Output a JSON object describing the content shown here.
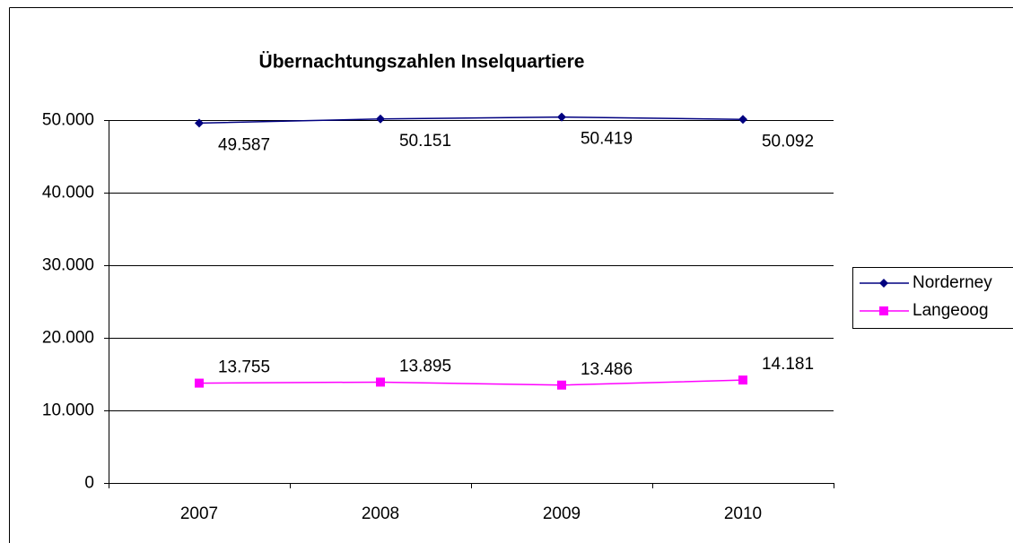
{
  "chart_data": {
    "type": "line",
    "title": "Übernachtungszahlen Inselquartiere",
    "categories": [
      "2007",
      "2008",
      "2009",
      "2010"
    ],
    "series": [
      {
        "name": "Norderney",
        "color": "#000080",
        "marker": "diamond",
        "values": [
          49587,
          50151,
          50419,
          50092
        ],
        "value_labels": [
          "49.587",
          "50.151",
          "50.419",
          "50.092"
        ]
      },
      {
        "name": "Langeoog",
        "color": "#ff00ff",
        "marker": "square",
        "values": [
          13755,
          13895,
          13486,
          14181
        ],
        "value_labels": [
          "13.755",
          "13.895",
          "13.486",
          "14.181"
        ]
      }
    ],
    "ylim": [
      0,
      50000
    ],
    "yticks": [
      0,
      {
        "value": 10000,
        "label": "10.000"
      },
      {
        "value": 20000,
        "label": "20.000"
      },
      {
        "value": 30000,
        "label": "30.000"
      },
      {
        "value": 40000,
        "label": "40.000"
      },
      {
        "value": 50000,
        "label": "50.000"
      }
    ],
    "grid": true,
    "legend": "right"
  }
}
